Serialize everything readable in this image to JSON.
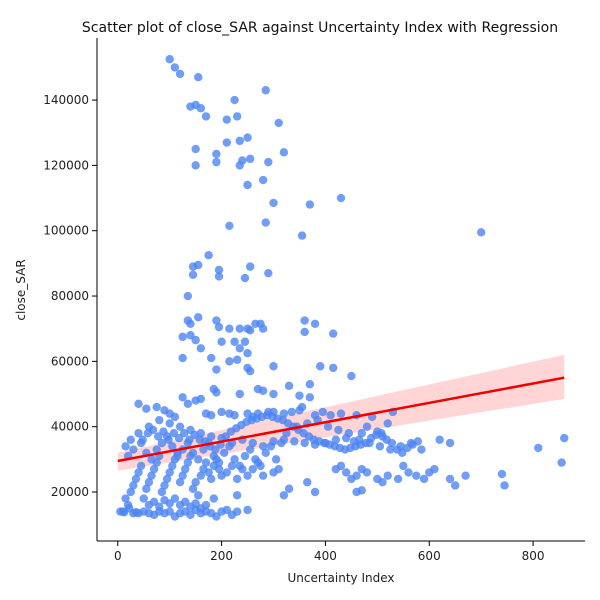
{
  "chart_data": {
    "type": "scatter",
    "title": "Scatter plot of close_SAR against Uncertainty Index with Regression",
    "xlabel": "Uncertainty Index",
    "ylabel": "close_SAR",
    "xlim": [
      -40,
      900
    ],
    "ylim": [
      5000,
      159000
    ],
    "xticks": [
      0,
      200,
      400,
      600,
      800
    ],
    "yticks": [
      20000,
      40000,
      60000,
      80000,
      100000,
      120000,
      140000
    ],
    "grid": false,
    "legend": "none",
    "colors": {
      "points": "#4c84f4",
      "regression_line": "#ee0000",
      "confidence_band": "#ffb3b3"
    },
    "regression": {
      "x": [
        0,
        860
      ],
      "y": [
        29500,
        55000
      ],
      "ci_lower": [
        26500,
        48500
      ],
      "ci_upper": [
        32000,
        62000
      ]
    },
    "points": [
      [
        100,
        152500
      ],
      [
        110,
        150000
      ],
      [
        120,
        148000
      ],
      [
        155,
        147000
      ],
      [
        140,
        138000
      ],
      [
        150,
        138500
      ],
      [
        160,
        137500
      ],
      [
        170,
        135000
      ],
      [
        225,
        140000
      ],
      [
        285,
        143000
      ],
      [
        210,
        134000
      ],
      [
        230,
        135000
      ],
      [
        310,
        133000
      ],
      [
        150,
        125000
      ],
      [
        190,
        123500
      ],
      [
        210,
        127000
      ],
      [
        235,
        127500
      ],
      [
        250,
        128500
      ],
      [
        320,
        124000
      ],
      [
        150,
        120000
      ],
      [
        190,
        121000
      ],
      [
        235,
        120000
      ],
      [
        240,
        121500
      ],
      [
        255,
        122000
      ],
      [
        290,
        121000
      ],
      [
        280,
        115500
      ],
      [
        250,
        114000
      ],
      [
        430,
        110000
      ],
      [
        300,
        108500
      ],
      [
        370,
        108000
      ],
      [
        285,
        102500
      ],
      [
        215,
        101500
      ],
      [
        355,
        98500
      ],
      [
        700,
        99500
      ],
      [
        175,
        92500
      ],
      [
        145,
        89000
      ],
      [
        155,
        89500
      ],
      [
        195,
        88000
      ],
      [
        255,
        89000
      ],
      [
        290,
        87000
      ],
      [
        145,
        86500
      ],
      [
        195,
        86000
      ],
      [
        245,
        85500
      ],
      [
        135,
        80000
      ],
      [
        135,
        72500
      ],
      [
        140,
        71500
      ],
      [
        155,
        73500
      ],
      [
        190,
        72500
      ],
      [
        195,
        70500
      ],
      [
        215,
        70000
      ],
      [
        235,
        70000
      ],
      [
        250,
        70000
      ],
      [
        265,
        71500
      ],
      [
        275,
        71500
      ],
      [
        255,
        69500
      ],
      [
        280,
        70000
      ],
      [
        360,
        72500
      ],
      [
        380,
        71500
      ],
      [
        360,
        69000
      ],
      [
        415,
        68500
      ],
      [
        125,
        67500
      ],
      [
        140,
        68000
      ],
      [
        150,
        66500
      ],
      [
        200,
        66000
      ],
      [
        225,
        66000
      ],
      [
        245,
        66000
      ],
      [
        160,
        64000
      ],
      [
        235,
        64000
      ],
      [
        250,
        62500
      ],
      [
        125,
        61000
      ],
      [
        180,
        61000
      ],
      [
        215,
        60000
      ],
      [
        230,
        60500
      ],
      [
        190,
        57500
      ],
      [
        250,
        58000
      ],
      [
        255,
        57000
      ],
      [
        300,
        58500
      ],
      [
        390,
        58500
      ],
      [
        415,
        58000
      ],
      [
        450,
        55500
      ],
      [
        370,
        53000
      ],
      [
        330,
        52500
      ],
      [
        270,
        51500
      ],
      [
        280,
        51000
      ],
      [
        185,
        51500
      ],
      [
        190,
        50500
      ],
      [
        235,
        50000
      ],
      [
        300,
        50000
      ],
      [
        350,
        49500
      ],
      [
        370,
        49000
      ],
      [
        40,
        47000
      ],
      [
        55,
        45500
      ],
      [
        75,
        46000
      ],
      [
        90,
        45000
      ],
      [
        125,
        49000
      ],
      [
        150,
        48000
      ],
      [
        160,
        48500
      ],
      [
        135,
        47000
      ],
      [
        100,
        44000
      ],
      [
        110,
        43000
      ],
      [
        170,
        44000
      ],
      [
        180,
        43500
      ],
      [
        200,
        44500
      ],
      [
        215,
        44000
      ],
      [
        225,
        43500
      ],
      [
        250,
        44000
      ],
      [
        260,
        43000
      ],
      [
        270,
        44000
      ],
      [
        290,
        44500
      ],
      [
        300,
        44500
      ],
      [
        320,
        44000
      ],
      [
        335,
        44500
      ],
      [
        350,
        45000
      ],
      [
        355,
        46000
      ],
      [
        380,
        43500
      ],
      [
        395,
        44500
      ],
      [
        410,
        43500
      ],
      [
        430,
        44000
      ],
      [
        460,
        43500
      ],
      [
        490,
        43000
      ],
      [
        530,
        44500
      ],
      [
        520,
        41000
      ],
      [
        480,
        40000
      ],
      [
        470,
        38000
      ],
      [
        500,
        38500
      ],
      [
        510,
        37000
      ],
      [
        455,
        35500
      ],
      [
        440,
        36500
      ],
      [
        420,
        36000
      ],
      [
        400,
        35000
      ],
      [
        380,
        34500
      ],
      [
        360,
        35000
      ],
      [
        340,
        35500
      ],
      [
        320,
        36000
      ],
      [
        300,
        35500
      ],
      [
        280,
        34000
      ],
      [
        260,
        35000
      ],
      [
        240,
        36000
      ],
      [
        220,
        35000
      ],
      [
        200,
        36500
      ],
      [
        180,
        37000
      ],
      [
        160,
        38000
      ],
      [
        140,
        39000
      ],
      [
        120,
        40000
      ],
      [
        100,
        41000
      ],
      [
        80,
        42000
      ],
      [
        60,
        40000
      ],
      [
        40,
        38000
      ],
      [
        25,
        36000
      ],
      [
        15,
        34000
      ],
      [
        20,
        31000
      ],
      [
        30,
        33000
      ],
      [
        45,
        35000
      ],
      [
        55,
        32000
      ],
      [
        65,
        30000
      ],
      [
        75,
        33000
      ],
      [
        85,
        35000
      ],
      [
        95,
        37000
      ],
      [
        105,
        34000
      ],
      [
        115,
        31000
      ],
      [
        125,
        33000
      ],
      [
        135,
        35000
      ],
      [
        145,
        32000
      ],
      [
        155,
        30000
      ],
      [
        165,
        33000
      ],
      [
        175,
        35000
      ],
      [
        185,
        31000
      ],
      [
        195,
        29000
      ],
      [
        205,
        32000
      ],
      [
        215,
        34000
      ],
      [
        225,
        30000
      ],
      [
        235,
        28000
      ],
      [
        245,
        31000
      ],
      [
        255,
        33000
      ],
      [
        265,
        30000
      ],
      [
        275,
        28000
      ],
      [
        285,
        32000
      ],
      [
        295,
        34000
      ],
      [
        305,
        30000
      ],
      [
        315,
        35000
      ],
      [
        325,
        38000
      ],
      [
        345,
        40000
      ],
      [
        365,
        41000
      ],
      [
        385,
        42000
      ],
      [
        405,
        40000
      ],
      [
        425,
        39000
      ],
      [
        445,
        38000
      ],
      [
        465,
        36000
      ],
      [
        485,
        35000
      ],
      [
        505,
        34000
      ],
      [
        525,
        33000
      ],
      [
        545,
        34000
      ],
      [
        565,
        35000
      ],
      [
        585,
        33000
      ],
      [
        620,
        36000
      ],
      [
        640,
        35000
      ],
      [
        600,
        26000
      ],
      [
        610,
        27000
      ],
      [
        640,
        24000
      ],
      [
        650,
        22000
      ],
      [
        670,
        25000
      ],
      [
        740,
        25500
      ],
      [
        745,
        22000
      ],
      [
        810,
        33500
      ],
      [
        860,
        36500
      ],
      [
        855,
        29000
      ],
      [
        550,
        28000
      ],
      [
        560,
        26000
      ],
      [
        575,
        25000
      ],
      [
        590,
        24000
      ],
      [
        520,
        25000
      ],
      [
        500,
        24000
      ],
      [
        480,
        26000
      ],
      [
        470,
        27000
      ],
      [
        460,
        25000
      ],
      [
        450,
        24000
      ],
      [
        440,
        26000
      ],
      [
        430,
        28000
      ],
      [
        420,
        27000
      ],
      [
        460,
        20000
      ],
      [
        470,
        20500
      ],
      [
        510,
        23000
      ],
      [
        540,
        24000
      ],
      [
        330,
        21000
      ],
      [
        320,
        19000
      ],
      [
        380,
        20000
      ],
      [
        365,
        23000
      ],
      [
        300,
        26000
      ],
      [
        310,
        27000
      ],
      [
        280,
        25000
      ],
      [
        10,
        14000
      ],
      [
        15,
        18000
      ],
      [
        20,
        16000
      ],
      [
        25,
        20000
      ],
      [
        30,
        22000
      ],
      [
        35,
        24000
      ],
      [
        40,
        26000
      ],
      [
        45,
        28000
      ],
      [
        50,
        18000
      ],
      [
        55,
        21000
      ],
      [
        60,
        23000
      ],
      [
        65,
        25000
      ],
      [
        70,
        27000
      ],
      [
        75,
        29000
      ],
      [
        80,
        31000
      ],
      [
        85,
        20000
      ],
      [
        90,
        22000
      ],
      [
        95,
        24000
      ],
      [
        100,
        26000
      ],
      [
        105,
        28000
      ],
      [
        110,
        30000
      ],
      [
        115,
        32000
      ],
      [
        120,
        23000
      ],
      [
        125,
        25000
      ],
      [
        130,
        27000
      ],
      [
        135,
        29000
      ],
      [
        140,
        31000
      ],
      [
        145,
        21000
      ],
      [
        150,
        23000
      ],
      [
        155,
        19000
      ],
      [
        160,
        25000
      ],
      [
        165,
        27000
      ],
      [
        170,
        29000
      ],
      [
        175,
        26000
      ],
      [
        180,
        24000
      ],
      [
        185,
        28000
      ],
      [
        190,
        30000
      ],
      [
        195,
        27000
      ],
      [
        200,
        25000
      ],
      [
        210,
        26000
      ],
      [
        220,
        28000
      ],
      [
        230,
        24000
      ],
      [
        240,
        27000
      ],
      [
        250,
        25000
      ],
      [
        260,
        27000
      ],
      [
        270,
        29000
      ],
      [
        30,
        13500
      ],
      [
        40,
        13500
      ],
      [
        50,
        14000
      ],
      [
        60,
        13500
      ],
      [
        70,
        13000
      ],
      [
        80,
        14000
      ],
      [
        90,
        13500
      ],
      [
        100,
        14000
      ],
      [
        110,
        12500
      ],
      [
        120,
        13500
      ],
      [
        130,
        14000
      ],
      [
        140,
        13000
      ],
      [
        150,
        14500
      ],
      [
        160,
        13500
      ],
      [
        170,
        14000
      ],
      [
        180,
        13500
      ],
      [
        190,
        12500
      ],
      [
        200,
        14000
      ],
      [
        210,
        14500
      ],
      [
        220,
        13000
      ],
      [
        230,
        14000
      ],
      [
        250,
        14500
      ],
      [
        60,
        16000
      ],
      [
        70,
        17000
      ],
      [
        80,
        15500
      ],
      [
        90,
        17500
      ],
      [
        100,
        16500
      ],
      [
        110,
        18000
      ],
      [
        120,
        16000
      ],
      [
        130,
        17000
      ],
      [
        140,
        15500
      ],
      [
        150,
        16500
      ],
      [
        160,
        15000
      ],
      [
        170,
        16000
      ],
      [
        185,
        18000
      ],
      [
        230,
        19000
      ],
      [
        5,
        14000
      ],
      [
        12,
        13800
      ],
      [
        22,
        15000
      ],
      [
        35,
        13800
      ],
      [
        48,
        36000
      ],
      [
        58,
        38000
      ],
      [
        68,
        39000
      ],
      [
        78,
        37000
      ],
      [
        88,
        38500
      ],
      [
        98,
        36000
      ],
      [
        108,
        38000
      ],
      [
        118,
        36500
      ],
      [
        128,
        38000
      ],
      [
        138,
        36000
      ],
      [
        148,
        37500
      ],
      [
        158,
        36000
      ],
      [
        168,
        35500
      ],
      [
        178,
        34000
      ],
      [
        188,
        33000
      ],
      [
        198,
        34500
      ],
      [
        208,
        37000
      ],
      [
        218,
        38500
      ],
      [
        228,
        39500
      ],
      [
        238,
        40500
      ],
      [
        248,
        41500
      ],
      [
        258,
        42000
      ],
      [
        268,
        42500
      ],
      [
        278,
        43000
      ],
      [
        288,
        43500
      ],
      [
        298,
        43000
      ],
      [
        308,
        42500
      ],
      [
        318,
        42000
      ],
      [
        328,
        41000
      ],
      [
        338,
        40000
      ],
      [
        348,
        39000
      ],
      [
        358,
        38000
      ],
      [
        368,
        37000
      ],
      [
        378,
        36000
      ],
      [
        388,
        35500
      ],
      [
        398,
        35000
      ],
      [
        408,
        34500
      ],
      [
        418,
        34000
      ],
      [
        428,
        33500
      ],
      [
        438,
        33000
      ],
      [
        448,
        33500
      ],
      [
        458,
        34000
      ],
      [
        468,
        34500
      ],
      [
        478,
        35000
      ],
      [
        488,
        36500
      ],
      [
        498,
        37500
      ],
      [
        508,
        38000
      ],
      [
        518,
        36000
      ],
      [
        528,
        35000
      ],
      [
        538,
        33000
      ],
      [
        548,
        32000
      ],
      [
        558,
        33500
      ],
      [
        568,
        34500
      ],
      [
        578,
        35500
      ]
    ]
  }
}
